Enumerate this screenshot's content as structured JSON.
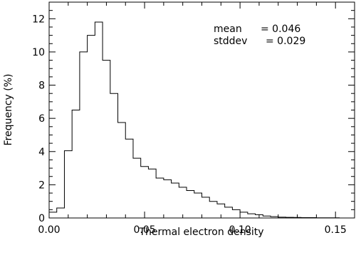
{
  "chart_data": {
    "type": "bar",
    "subtype": "histogram-step",
    "xlabel": "Thermal electron density",
    "ylabel": "Frequency (%)",
    "xlim": [
      0,
      0.16
    ],
    "ylim": [
      0,
      13
    ],
    "x_ticks": [
      0.0,
      0.05,
      0.1,
      0.15
    ],
    "x_tick_labels": [
      "0.00",
      "0.05",
      "0.10",
      "0.15"
    ],
    "y_ticks": [
      0,
      2,
      4,
      6,
      8,
      10,
      12
    ],
    "y_tick_labels": [
      "0",
      "2",
      "4",
      "6",
      "8",
      "10",
      "12"
    ],
    "bin_width": 0.004,
    "bin_starts": [
      0.0,
      0.004,
      0.008,
      0.012,
      0.016,
      0.02,
      0.024,
      0.028,
      0.032,
      0.036,
      0.04,
      0.044,
      0.048,
      0.052,
      0.056,
      0.06,
      0.064,
      0.068,
      0.072,
      0.076,
      0.08,
      0.084,
      0.088,
      0.092,
      0.096,
      0.1,
      0.104,
      0.108,
      0.112,
      0.116,
      0.12,
      0.124,
      0.128,
      0.132,
      0.136,
      0.14,
      0.144,
      0.148,
      0.152,
      0.156
    ],
    "values": [
      0.35,
      0.6,
      4.05,
      6.5,
      10.0,
      11.0,
      11.8,
      9.5,
      7.5,
      5.75,
      4.75,
      3.6,
      3.1,
      2.95,
      2.4,
      2.3,
      2.1,
      1.85,
      1.65,
      1.5,
      1.25,
      1.0,
      0.85,
      0.65,
      0.5,
      0.35,
      0.25,
      0.2,
      0.12,
      0.08,
      0.05,
      0.04,
      0.03,
      0.02,
      0.02,
      0.01,
      0.01,
      0.01,
      0.0,
      0.0
    ],
    "annotations": [
      {
        "label": "mean",
        "value": "= 0.046"
      },
      {
        "label": "stddev",
        "value": "= 0.029"
      }
    ]
  }
}
